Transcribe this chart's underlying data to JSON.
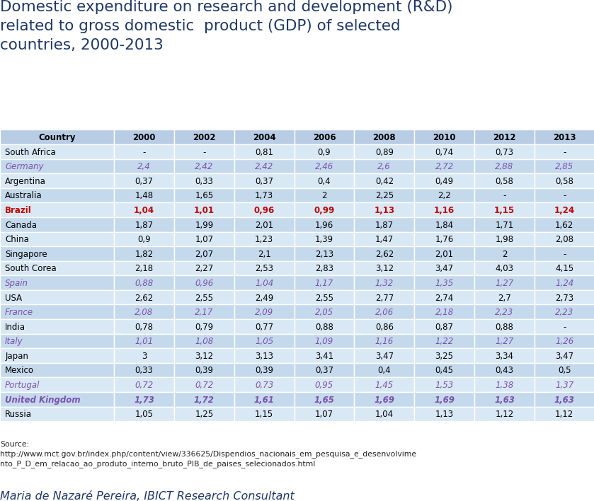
{
  "title": "Domestic expenditure on research and development (R&D)\nrelated to gross domestic  product (GDP) of selected\ncountries, 2000-2013",
  "title_color": "#1F3864",
  "columns": [
    "Country",
    "2000",
    "2002",
    "2004",
    "2006",
    "2008",
    "2010",
    "2012",
    "2013"
  ],
  "rows": [
    {
      "country": "South Africa",
      "values": [
        "-",
        "-",
        "0,81",
        "0,9",
        "0,89",
        "0,74",
        "0,73",
        "-"
      ],
      "color": "black",
      "bold": false,
      "italic": false
    },
    {
      "country": "Germany",
      "values": [
        "2,4",
        "2,42",
        "2,42",
        "2,46",
        "2,6",
        "2,72",
        "2,88",
        "2,85"
      ],
      "color": "#7B52AB",
      "bold": false,
      "italic": true
    },
    {
      "country": "Argentina",
      "values": [
        "0,37",
        "0,33",
        "0,37",
        "0,4",
        "0,42",
        "0,49",
        "0,58",
        "0,58"
      ],
      "color": "black",
      "bold": false,
      "italic": false
    },
    {
      "country": "Australia",
      "values": [
        "1,48",
        "1,65",
        "1,73",
        "2",
        "2,25",
        "2,2",
        "-",
        "-"
      ],
      "color": "black",
      "bold": false,
      "italic": false
    },
    {
      "country": "Brazil",
      "values": [
        "1,04",
        "1,01",
        "0,96",
        "0,99",
        "1,13",
        "1,16",
        "1,15",
        "1,24"
      ],
      "color": "#C00000",
      "bold": true,
      "italic": false
    },
    {
      "country": "Canada",
      "values": [
        "1,87",
        "1,99",
        "2,01",
        "1,96",
        "1,87",
        "1,84",
        "1,71",
        "1,62"
      ],
      "color": "black",
      "bold": false,
      "italic": false
    },
    {
      "country": "China",
      "values": [
        "0,9",
        "1,07",
        "1,23",
        "1,39",
        "1,47",
        "1,76",
        "1,98",
        "2,08"
      ],
      "color": "black",
      "bold": false,
      "italic": false
    },
    {
      "country": "Singapore",
      "values": [
        "1,82",
        "2,07",
        "2,1",
        "2,13",
        "2,62",
        "2,01",
        "2",
        "-"
      ],
      "color": "black",
      "bold": false,
      "italic": false
    },
    {
      "country": "South Corea",
      "values": [
        "2,18",
        "2,27",
        "2,53",
        "2,83",
        "3,12",
        "3,47",
        "4,03",
        "4,15"
      ],
      "color": "black",
      "bold": false,
      "italic": false
    },
    {
      "country": "Spain",
      "values": [
        "0,88",
        "0,96",
        "1,04",
        "1,17",
        "1,32",
        "1,35",
        "1,27",
        "1,24"
      ],
      "color": "#7B52AB",
      "bold": false,
      "italic": true
    },
    {
      "country": "USA",
      "values": [
        "2,62",
        "2,55",
        "2,49",
        "2,55",
        "2,77",
        "2,74",
        "2,7",
        "2,73"
      ],
      "color": "black",
      "bold": false,
      "italic": false
    },
    {
      "country": "France",
      "values": [
        "2,08",
        "2,17",
        "2,09",
        "2,05",
        "2,06",
        "2,18",
        "2,23",
        "2,23"
      ],
      "color": "#7B52AB",
      "bold": false,
      "italic": true
    },
    {
      "country": "India",
      "values": [
        "0,78",
        "0,79",
        "0,77",
        "0,88",
        "0,86",
        "0,87",
        "0,88",
        "-"
      ],
      "color": "black",
      "bold": false,
      "italic": false
    },
    {
      "country": "Italy",
      "values": [
        "1,01",
        "1,08",
        "1,05",
        "1,09",
        "1,16",
        "1,22",
        "1,27",
        "1,26"
      ],
      "color": "#7B52AB",
      "bold": false,
      "italic": true
    },
    {
      "country": "Japan",
      "values": [
        "3",
        "3,12",
        "3,13",
        "3,41",
        "3,47",
        "3,25",
        "3,34",
        "3,47"
      ],
      "color": "black",
      "bold": false,
      "italic": false
    },
    {
      "country": "Mexico",
      "values": [
        "0,33",
        "0,39",
        "0,39",
        "0,37",
        "0,4",
        "0,45",
        "0,43",
        "0,5"
      ],
      "color": "black",
      "bold": false,
      "italic": false
    },
    {
      "country": "Portugal",
      "values": [
        "0,72",
        "0,72",
        "0,73",
        "0,95",
        "1,45",
        "1,53",
        "1,38",
        "1,37"
      ],
      "color": "#7B52AB",
      "bold": false,
      "italic": true
    },
    {
      "country": "United Kingdom",
      "values": [
        "1,73",
        "1,72",
        "1,61",
        "1,65",
        "1,69",
        "1,69",
        "1,63",
        "1,63"
      ],
      "color": "#7B52AB",
      "bold": true,
      "italic": true
    },
    {
      "country": "Russia",
      "values": [
        "1,05",
        "1,25",
        "1,15",
        "1,07",
        "1,04",
        "1,13",
        "1,12",
        "1,12"
      ],
      "color": "black",
      "bold": false,
      "italic": false
    }
  ],
  "header_bg": "#B8CCE4",
  "row_bg_light": "#D9E8F5",
  "row_bg_dark": "#C5D9ED",
  "source_text": "Source:\nhttp://www.mct.gov.br/index.php/content/view/336625/Dispendios_nacionais_em_pesquisa_e_desenvolvime\nnto_P_D_em_relacao_ao_produto_interno_bruto_PIB_de_paises_selecionados.html",
  "footer_text": "Maria de Nazaré Pereira, IBICT Research Consultant",
  "col_widths_ratio": [
    1.9,
    1.0,
    1.0,
    1.0,
    1.0,
    1.0,
    1.0,
    1.0,
    1.0
  ]
}
